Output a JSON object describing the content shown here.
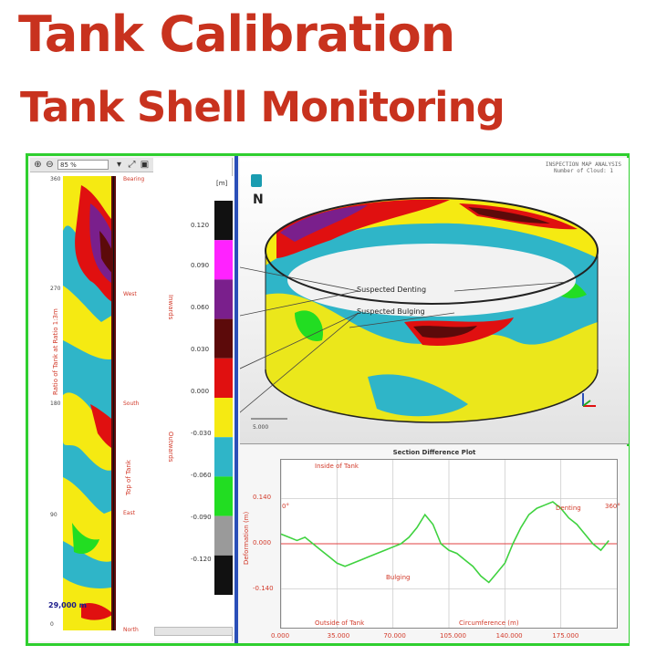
{
  "title": "Tank Calibration",
  "subtitle": "Tank Shell Monitoring",
  "colors": {
    "title": "#c8321e",
    "frame_border": "#2fcf2f",
    "divider": "#2a4fb8",
    "plot_line": "#3fd23f",
    "zero_line": "#e04040"
  },
  "strip_viewer": {
    "toolbar": {
      "zoom_in_icon": "zoom-in-icon",
      "zoom_out_icon": "zoom-out-icon",
      "zoom_value": "85 %"
    },
    "ticks": [
      "360",
      "270",
      "180",
      "90",
      "0"
    ],
    "side_labels": [
      "Bearing",
      "West",
      "South",
      "East",
      "North"
    ],
    "vertical_left": "Ratio of Tank at Ratio 1:3m",
    "vertical_right": "Top of Tank",
    "scale_value": "29,000 m"
  },
  "legend": {
    "unit": "[m]",
    "values": [
      "0.120",
      "0.090",
      "0.060",
      "0.030",
      "0.000",
      "-0.030",
      "-0.060",
      "-0.090",
      "-0.120"
    ],
    "colors": [
      "#111111",
      "#ff22ff",
      "#7a1f8c",
      "#5c0a0a",
      "#e01010",
      "#f5ea12",
      "#2fb5c8",
      "#22dd22",
      "#9a9a9a",
      "#111111"
    ],
    "label_top": "Inwards",
    "label_bottom": "Outwards"
  },
  "view3d": {
    "header_line1": "INSPECTION MAP ANALYSIS",
    "header_line2": "Number of Cloud: 1",
    "north": "N",
    "annotations": [
      "Suspected Denting",
      "Suspected Bulging"
    ],
    "scale_label": "5.000"
  },
  "plot": {
    "title": "Section Difference Plot",
    "notes": {
      "inside": "Inside of Tank",
      "outside": "Outside of Tank",
      "denting": "Denting",
      "bulging": "Bulging",
      "x_title": "Circumference (m)"
    },
    "ylabel": "Deformation (m)",
    "end_left": "0°",
    "end_right": "360°"
  },
  "chart_data": {
    "type": "line",
    "title": "Section Difference Plot",
    "xlabel": "Circumference (m)",
    "ylabel": "Deformation (m)",
    "x_ticks": [
      "0.000",
      "35.000",
      "70.000",
      "105.000",
      "140.000",
      "175.000"
    ],
    "y_ticks": [
      "0.140",
      "0.000",
      "-0.140"
    ],
    "xlim": [
      0,
      210
    ],
    "ylim": [
      -0.26,
      0.26
    ],
    "grid": true,
    "series": [
      {
        "x": [
          0,
          5,
          10,
          15,
          20,
          25,
          30,
          35,
          40,
          45,
          50,
          55,
          60,
          65,
          70,
          75,
          80,
          85,
          90,
          95,
          100,
          105,
          110,
          115,
          120,
          125,
          130,
          135,
          140,
          145,
          150,
          155,
          160,
          165,
          170,
          175,
          180,
          185,
          190,
          195,
          200,
          205
        ],
        "y": [
          0.03,
          0.02,
          0.01,
          0.02,
          0.0,
          -0.02,
          -0.04,
          -0.06,
          -0.07,
          -0.06,
          -0.05,
          -0.04,
          -0.03,
          -0.02,
          -0.01,
          0.0,
          0.02,
          0.05,
          0.09,
          0.06,
          0.0,
          -0.02,
          -0.03,
          -0.05,
          -0.07,
          -0.1,
          -0.12,
          -0.09,
          -0.06,
          0.0,
          0.05,
          0.09,
          0.11,
          0.12,
          0.13,
          0.11,
          0.08,
          0.06,
          0.03,
          0.0,
          -0.02,
          0.01
        ]
      }
    ]
  }
}
